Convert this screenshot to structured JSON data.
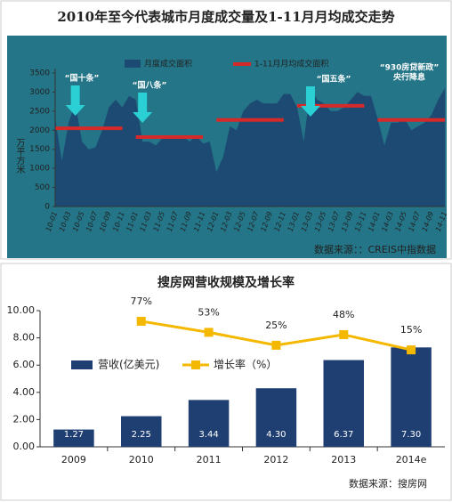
{
  "chart_data": [
    {
      "type": "area",
      "title": "2010年至今代表城市月度成交量及1-11月月均成交走势",
      "y_label": "万平方米",
      "source": "数据来源：：CREIS中指数据",
      "categories": [
        "10-01",
        null,
        "10-03",
        null,
        "10-05",
        null,
        "10-07",
        null,
        "10-09",
        null,
        "10-11",
        null,
        "11-01",
        null,
        "11-03",
        null,
        "11-05",
        null,
        "11-07",
        null,
        "11-09",
        null,
        "11-11",
        null,
        "12-01",
        null,
        "12-03",
        null,
        "12-05",
        null,
        "12-07",
        null,
        "12-09",
        null,
        "12-11",
        null,
        "13-01",
        null,
        "13-03",
        null,
        "13-05",
        null,
        "13-07",
        null,
        "13-09",
        null,
        "13-11",
        null,
        "14-01",
        null,
        "14-03",
        null,
        "14-05",
        null,
        "14-07",
        null,
        "14-09",
        null,
        "14-11"
      ],
      "series": [
        {
          "name": "月度成交面积",
          "color": "#1c4a73",
          "values": [
            2300,
            1200,
            2200,
            2700,
            1700,
            1500,
            1550,
            2000,
            2600,
            2800,
            2600,
            2900,
            2800,
            1700,
            1700,
            1600,
            1800,
            1800,
            1800,
            1850,
            1700,
            1850,
            1650,
            1700,
            900,
            1300,
            2100,
            2000,
            2500,
            2700,
            2800,
            2700,
            2700,
            2700,
            2950,
            2950,
            2600,
            1700,
            3100,
            2800,
            2700,
            2500,
            2500,
            2600,
            2800,
            3000,
            2900,
            2900,
            2300,
            1600,
            2200,
            2200,
            2300,
            2000,
            2100,
            2200,
            2400,
            2800,
            3100
          ]
        },
        {
          "name": "1-11月月均成交面积",
          "color": "#d62a2a",
          "values": [
            2050,
            2050,
            2050,
            2050,
            2050,
            2050,
            2050,
            2050,
            2050,
            2050,
            2050,
            null,
            1820,
            1820,
            1820,
            1820,
            1820,
            1820,
            1820,
            1820,
            1820,
            1820,
            1820,
            null,
            2270,
            2270,
            2270,
            2270,
            2270,
            2270,
            2270,
            2270,
            2270,
            2270,
            2270,
            null,
            2640,
            2640,
            2640,
            2640,
            2640,
            2640,
            2640,
            2640,
            2640,
            2640,
            2640,
            null,
            2270,
            2270,
            2270,
            2270,
            2270,
            2270,
            2270,
            2270,
            2270,
            2270,
            2270
          ]
        }
      ],
      "ylim": [
        0,
        3500
      ],
      "yticks": [
        0,
        500,
        1000,
        1500,
        2000,
        2500,
        3000,
        3500
      ],
      "annotations": [
        "“国十条”",
        "“国八条”",
        "“国五条”",
        "“930房贷新政”",
        "央行降息"
      ]
    },
    {
      "type": "bar",
      "title": "搜房网营收规模及增长率",
      "source": "数据来源：搜房网",
      "categories": [
        "2009",
        "2010",
        "2011",
        "2012",
        "2013",
        "2014e"
      ],
      "series": [
        {
          "name": "营收(亿美元)",
          "color": "#1f3f73",
          "values": [
            1.27,
            2.25,
            3.44,
            4.3,
            6.37,
            7.3
          ],
          "value_labels": [
            "1.27",
            "2.25",
            "3.44",
            "4.30",
            "6.37",
            "7.30"
          ]
        },
        {
          "name": "增长率（%）",
          "color": "#f5b800",
          "axis": "y2",
          "type": "line",
          "values": [
            null,
            77,
            53,
            25,
            48,
            15
          ],
          "value_labels": [
            null,
            "77%",
            "53%",
            "25%",
            "48%",
            "15%"
          ]
        }
      ],
      "ylim": [
        0,
        10
      ],
      "yticks": [
        {
          "value": 0,
          "label": "0.00"
        },
        {
          "value": 2,
          "label": "2.00"
        },
        {
          "value": 4,
          "label": "4.00"
        },
        {
          "value": 6,
          "label": "6.00"
        },
        {
          "value": 8,
          "label": "8.00"
        },
        {
          "value": 10,
          "label": "10.00"
        }
      ],
      "y2lim": [
        -195,
        100
      ]
    }
  ]
}
